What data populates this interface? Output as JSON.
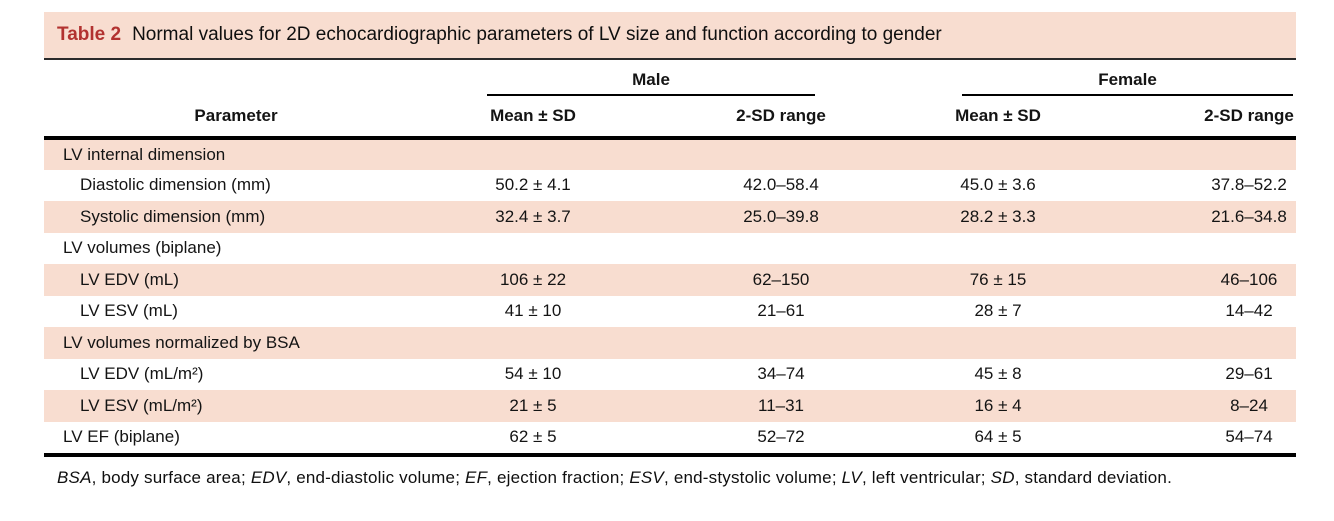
{
  "colors": {
    "row_pink": "#f8ddd0",
    "accent_red": "#b23230"
  },
  "table": {
    "title_label": "Table 2",
    "title_text": "Normal values for 2D echocardiographic parameters of LV size and function according to gender",
    "groups": {
      "male": "Male",
      "female": "Female"
    },
    "columns": {
      "parameter": "Parameter",
      "male_mean_sd": "Mean ± SD",
      "male_range": "2-SD range",
      "female_mean_sd": "Mean ± SD",
      "female_range": "2-SD range"
    },
    "rows": [
      {
        "type": "section",
        "label": "LV internal dimension"
      },
      {
        "type": "data",
        "label": "Diastolic dimension (mm)",
        "male_mean_sd": "50.2 ± 4.1",
        "male_range": "42.0–58.4",
        "female_mean_sd": "45.0 ± 3.6",
        "female_range": "37.8–52.2"
      },
      {
        "type": "data",
        "label": "Systolic dimension (mm)",
        "male_mean_sd": "32.4 ± 3.7",
        "male_range": "25.0–39.8",
        "female_mean_sd": "28.2 ± 3.3",
        "female_range": "21.6–34.8"
      },
      {
        "type": "section",
        "label": "LV volumes (biplane)"
      },
      {
        "type": "data",
        "label": "LV EDV (mL)",
        "male_mean_sd": "106 ± 22",
        "male_range": "62–150",
        "female_mean_sd": "76 ± 15",
        "female_range": "46–106"
      },
      {
        "type": "data",
        "label": "LV ESV (mL)",
        "male_mean_sd": "41 ± 10",
        "male_range": "21–61",
        "female_mean_sd": "28 ± 7",
        "female_range": "14–42"
      },
      {
        "type": "section",
        "label": "LV volumes normalized by BSA"
      },
      {
        "type": "data",
        "label": "LV EDV (mL/m²)",
        "male_mean_sd": "54 ± 10",
        "male_range": "34–74",
        "female_mean_sd": "45 ± 8",
        "female_range": "29–61"
      },
      {
        "type": "data",
        "label": "LV ESV (mL/m²)",
        "male_mean_sd": "21 ± 5",
        "male_range": "11–31",
        "female_mean_sd": "16 ± 4",
        "female_range": "8–24"
      },
      {
        "type": "data",
        "label": "LV EF (biplane)",
        "male_mean_sd": "62 ± 5",
        "male_range": "52–72",
        "female_mean_sd": "64 ± 5",
        "female_range": "54–74"
      }
    ],
    "footnote_segments": [
      {
        "text": "BSA",
        "italic": true
      },
      {
        "text": ", body surface area; ",
        "italic": false
      },
      {
        "text": "EDV",
        "italic": true
      },
      {
        "text": ", end-diastolic volume; ",
        "italic": false
      },
      {
        "text": "EF",
        "italic": true
      },
      {
        "text": ", ejection fraction; ",
        "italic": false
      },
      {
        "text": "ESV",
        "italic": true
      },
      {
        "text": ", end-stystolic volume; ",
        "italic": false
      },
      {
        "text": "LV",
        "italic": true
      },
      {
        "text": ", left ventricular; ",
        "italic": false
      },
      {
        "text": "SD",
        "italic": true
      },
      {
        "text": ", standard deviation.",
        "italic": false
      }
    ]
  }
}
